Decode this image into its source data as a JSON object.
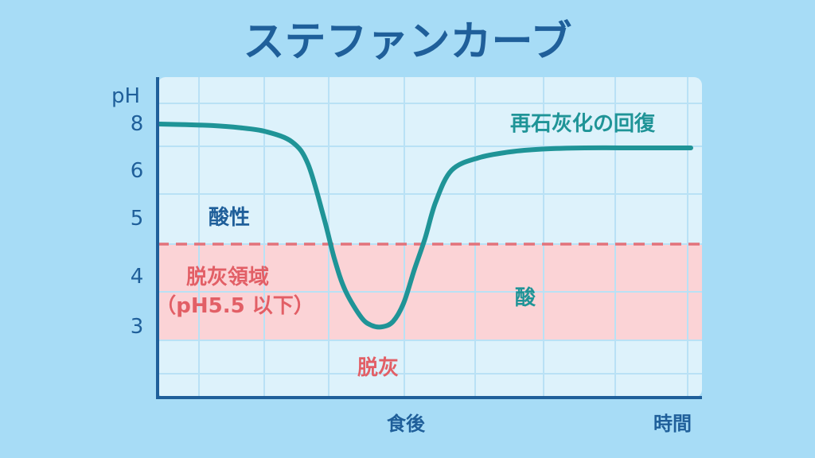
{
  "title": "ステファンカーブ",
  "chart_data": {
    "type": "line",
    "title": "ステファンカーブ",
    "ylabel": "pH",
    "y_ticks": [
      8,
      6,
      5,
      4,
      3
    ],
    "x_tick_labels": {
      "meal": "食後",
      "time": "時間"
    },
    "threshold": {
      "value": 5.5,
      "style": "dashed"
    },
    "demineralization_band": {
      "from": 2.7,
      "to": 5.5
    },
    "series": [
      {
        "x": [
          0,
          0.05,
          0.1,
          0.15,
          0.2,
          0.25,
          0.28,
          0.31,
          0.33,
          0.35,
          0.38,
          0.4,
          0.42,
          0.44,
          0.46,
          0.48,
          0.5,
          0.52,
          0.55,
          0.6,
          0.66,
          0.72,
          0.8,
          0.9,
          1.0
        ],
        "values": [
          8.0,
          7.98,
          7.95,
          7.88,
          7.75,
          7.4,
          6.8,
          5.9,
          4.8,
          3.9,
          3.25,
          3.05,
          3.02,
          3.15,
          3.6,
          4.5,
          5.5,
          6.15,
          6.65,
          6.95,
          7.1,
          7.17,
          7.2,
          7.2,
          7.2
        ]
      }
    ],
    "annotations": {
      "acidity": "酸性",
      "zone_line1": "脱灰領域",
      "zone_line2": "（pH5.5 以下）",
      "demineralization": "脱灰",
      "recovery": "再石灰化の回復",
      "acid": "酸"
    },
    "grid": true
  },
  "colors": {
    "background": "#a7dcf6",
    "plot_bg": "#ddf2fb",
    "grid": "#b9e1f5",
    "axis": "#1f5f9a",
    "curve": "#1f9497",
    "band": "#fbd3d6",
    "dashed": "#e2737b",
    "title": "#1f5f9a"
  }
}
